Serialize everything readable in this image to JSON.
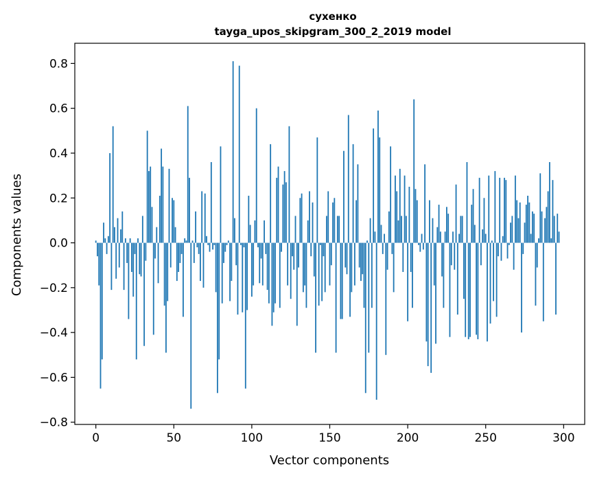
{
  "chart_data": {
    "type": "bar",
    "title": "сухенко",
    "subtitle": "tayga_upos_skipgram_300_2_2019 model",
    "xlabel": "Vector components",
    "ylabel": "Components values",
    "xlim": [
      -13.5,
      313.5
    ],
    "ylim": [
      -0.81,
      0.89
    ],
    "xticks": [
      0,
      50,
      100,
      150,
      200,
      250,
      300
    ],
    "xtick_labels": [
      "0",
      "50",
      "100",
      "150",
      "200",
      "250",
      "300"
    ],
    "yticks": [
      -0.8,
      -0.6,
      -0.4,
      -0.2,
      0.0,
      0.2,
      0.4,
      0.6,
      0.8
    ],
    "ytick_labels": [
      "−0.8",
      "−0.6",
      "−0.4",
      "−0.2",
      "0.0",
      "0.2",
      "0.4",
      "0.6",
      "0.8"
    ],
    "grid": false,
    "bar_color": "#1f77b4",
    "x_start": 0,
    "values": [
      0.01,
      -0.06,
      -0.19,
      -0.65,
      -0.52,
      0.09,
      0.02,
      -0.05,
      0.03,
      0.4,
      -0.21,
      0.52,
      0.07,
      -0.16,
      0.11,
      -0.11,
      0.06,
      0.14,
      -0.21,
      0.02,
      -0.09,
      -0.34,
      0.02,
      -0.13,
      -0.24,
      -0.05,
      -0.52,
      0.02,
      -0.14,
      -0.15,
      0.12,
      -0.46,
      -0.08,
      0.5,
      0.32,
      0.34,
      0.16,
      -0.41,
      -0.07,
      0.07,
      -0.18,
      0.21,
      0.42,
      0.34,
      -0.28,
      -0.49,
      -0.26,
      0.33,
      -0.11,
      0.2,
      0.19,
      0.07,
      -0.17,
      -0.13,
      -0.09,
      -0.05,
      -0.33,
      0.02,
      0.01,
      0.61,
      0.29,
      -0.74,
      0.01,
      -0.09,
      0.14,
      -0.02,
      -0.05,
      -0.17,
      0.23,
      -0.2,
      0.22,
      0.03,
      -0.01,
      -0.04,
      0.36,
      -0.03,
      -0.01,
      -0.22,
      -0.67,
      -0.52,
      0.43,
      -0.27,
      -0.09,
      -0.04,
      -0.01,
      0.01,
      -0.26,
      -0.17,
      0.81,
      0.11,
      -0.1,
      -0.32,
      0.79,
      -0.01,
      -0.31,
      -0.02,
      -0.65,
      -0.3,
      0.21,
      0.08,
      -0.24,
      -0.19,
      0.1,
      0.6,
      -0.02,
      -0.18,
      -0.07,
      -0.19,
      0.1,
      -0.05,
      -0.21,
      -0.27,
      0.44,
      -0.37,
      -0.31,
      -0.27,
      0.29,
      0.34,
      -0.29,
      -0.04,
      0.26,
      0.32,
      0.27,
      -0.19,
      0.52,
      -0.25,
      -0.06,
      -0.12,
      0.12,
      -0.37,
      -0.11,
      0.2,
      0.22,
      -0.22,
      -0.19,
      -0.29,
      0.1,
      0.23,
      -0.06,
      0.18,
      -0.15,
      -0.49,
      0.47,
      -0.28,
      -0.01,
      -0.26,
      -0.06,
      -0.22,
      0.12,
      0.23,
      -0.19,
      -0.1,
      0.18,
      0.2,
      -0.49,
      0.12,
      0.12,
      -0.34,
      -0.34,
      0.41,
      -0.11,
      -0.14,
      0.57,
      -0.33,
      -0.22,
      0.44,
      -0.19,
      0.19,
      0.35,
      -0.11,
      -0.17,
      -0.14,
      -0.29,
      -0.67,
      0.01,
      -0.49,
      0.11,
      -0.29,
      0.51,
      0.05,
      -0.7,
      0.59,
      0.47,
      0.08,
      -0.05,
      0.04,
      -0.5,
      -0.12,
      0.14,
      0.43,
      -0.05,
      -0.22,
      0.3,
      0.23,
      0.1,
      0.33,
      0.12,
      -0.13,
      0.3,
      0.12,
      -0.35,
      0.25,
      -0.13,
      -0.29,
      0.64,
      0.24,
      0.19,
      -0.01,
      -0.04,
      0.04,
      -0.03,
      0.35,
      -0.44,
      -0.55,
      0.19,
      -0.58,
      0.11,
      -0.19,
      -0.45,
      0.07,
      0.17,
      0.05,
      -0.15,
      -0.29,
      0.05,
      0.16,
      0.13,
      -0.42,
      -0.1,
      0.05,
      -0.12,
      0.26,
      -0.32,
      0.04,
      0.12,
      0.12,
      -0.25,
      -0.42,
      0.36,
      -0.43,
      -0.42,
      0.17,
      0.24,
      0.08,
      -0.41,
      -0.43,
      0.29,
      -0.1,
      0.06,
      0.2,
      0.04,
      -0.44,
      0.3,
      -0.36,
      0.01,
      -0.26,
      0.32,
      -0.33,
      -0.06,
      0.29,
      -0.08,
      0.03,
      0.29,
      0.28,
      -0.07,
      -0.01,
      0.09,
      0.12,
      -0.12,
      0.3,
      0.19,
      0.11,
      0.18,
      -0.4,
      -0.05,
      0.09,
      0.17,
      0.21,
      0.18,
      0.04,
      0.14,
      0.13,
      -0.28,
      -0.11,
      0.02,
      0.31,
      0.14,
      -0.35,
      0.11,
      0.16,
      0.23,
      0.36,
      0.02,
      0.28,
      0.12,
      -0.32,
      0.13,
      0.05
    ]
  }
}
